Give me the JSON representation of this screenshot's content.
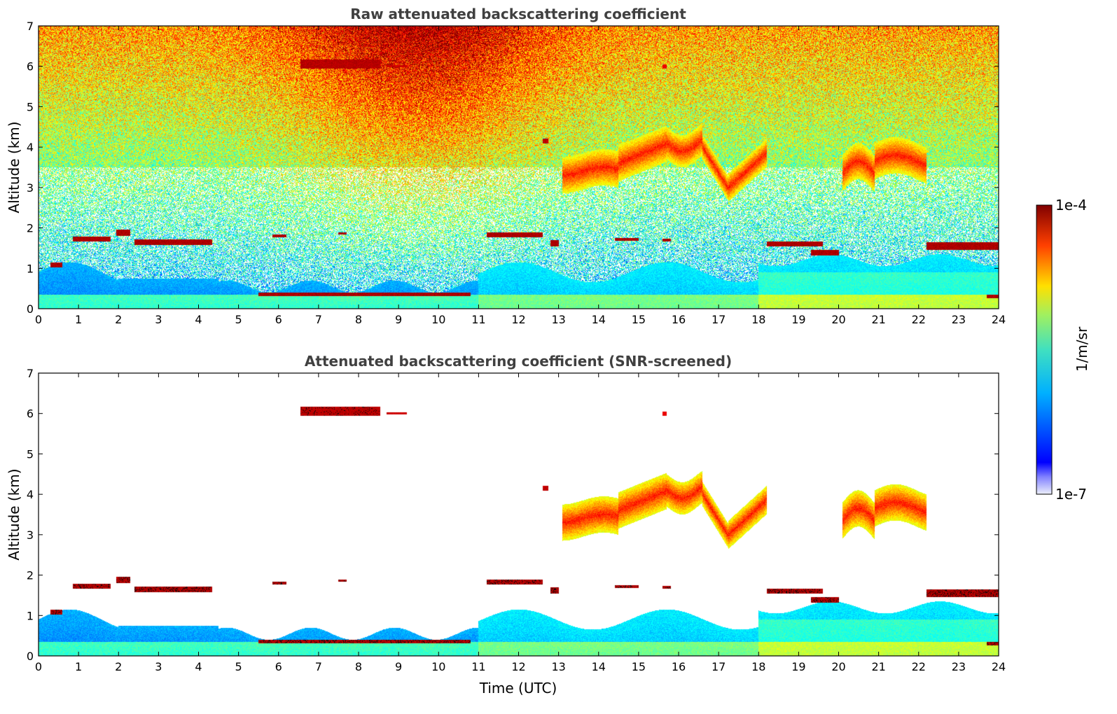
{
  "chart_data": [
    {
      "type": "heatmap",
      "title": "Raw attenuated backscattering coefficient",
      "xlabel": "",
      "ylabel": "Altitude (km)",
      "xlim": [
        0,
        24
      ],
      "ylim": [
        0,
        7
      ],
      "x_ticks": [
        "0",
        "1",
        "2",
        "3",
        "4",
        "5",
        "6",
        "7",
        "8",
        "9",
        "10",
        "11",
        "12",
        "13",
        "14",
        "15",
        "16",
        "17",
        "18",
        "19",
        "20",
        "21",
        "22",
        "23",
        "24"
      ],
      "y_ticks": [
        "0",
        "1",
        "2",
        "3",
        "4",
        "5",
        "6",
        "7"
      ],
      "screened": false
    },
    {
      "type": "heatmap",
      "title": "Attenuated backscattering coefficient (SNR-screened)",
      "xlabel": "Time (UTC)",
      "ylabel": "Altitude (km)",
      "xlim": [
        0,
        24
      ],
      "ylim": [
        0,
        7
      ],
      "x_ticks": [
        "0",
        "1",
        "2",
        "3",
        "4",
        "5",
        "6",
        "7",
        "8",
        "9",
        "10",
        "11",
        "12",
        "13",
        "14",
        "15",
        "16",
        "17",
        "18",
        "19",
        "20",
        "21",
        "22",
        "23",
        "24"
      ],
      "y_ticks": [
        "0",
        "1",
        "2",
        "3",
        "4",
        "5",
        "6",
        "7"
      ],
      "screened": true
    }
  ],
  "colorbar": {
    "label": "1/m/sr",
    "max_label": "1e-4",
    "min_label": "1e-7",
    "colormap": "jet",
    "scale": "log",
    "range": [
      1e-07,
      0.0001
    ]
  },
  "features": {
    "high_clouds": [
      {
        "t0": 6.55,
        "t1": 8.55,
        "alt": 6.05,
        "thick": 0.22,
        "v": 0.97
      },
      {
        "t0": 8.7,
        "t1": 9.2,
        "alt": 6.0,
        "thick": 0.06,
        "v": 0.95
      },
      {
        "t0": 12.6,
        "t1": 12.75,
        "alt": 4.15,
        "thick": 0.12,
        "v": 0.96
      },
      {
        "t0": 15.6,
        "t1": 15.7,
        "alt": 6.0,
        "thick": 0.1,
        "v": 0.92
      }
    ],
    "low_clouds": [
      {
        "t0": 0.85,
        "t1": 1.8,
        "alt": 1.72,
        "thick": 0.12
      },
      {
        "t0": 1.95,
        "t1": 2.3,
        "alt": 1.88,
        "thick": 0.14
      },
      {
        "t0": 2.4,
        "t1": 4.35,
        "alt": 1.65,
        "thick": 0.14
      },
      {
        "t0": 5.85,
        "t1": 6.2,
        "alt": 1.8,
        "thick": 0.06
      },
      {
        "t0": 7.5,
        "t1": 7.7,
        "alt": 1.86,
        "thick": 0.05
      },
      {
        "t0": 11.2,
        "t1": 12.6,
        "alt": 1.82,
        "thick": 0.12
      },
      {
        "t0": 12.8,
        "t1": 13.0,
        "alt": 1.62,
        "thick": 0.15
      },
      {
        "t0": 14.4,
        "t1": 15.0,
        "alt": 1.72,
        "thick": 0.07
      },
      {
        "t0": 15.6,
        "t1": 15.8,
        "alt": 1.7,
        "thick": 0.06
      },
      {
        "t0": 18.2,
        "t1": 19.6,
        "alt": 1.6,
        "thick": 0.12
      },
      {
        "t0": 19.3,
        "t1": 20.0,
        "alt": 1.38,
        "thick": 0.14
      },
      {
        "t0": 22.2,
        "t1": 24.0,
        "alt": 1.55,
        "thick": 0.2
      },
      {
        "t0": 0.3,
        "t1": 0.6,
        "alt": 1.08,
        "thick": 0.12
      },
      {
        "t0": 5.5,
        "t1": 10.8,
        "alt": 0.35,
        "thick": 0.08
      },
      {
        "t0": 23.7,
        "t1": 24.0,
        "alt": 0.3,
        "thick": 0.08
      }
    ]
  }
}
